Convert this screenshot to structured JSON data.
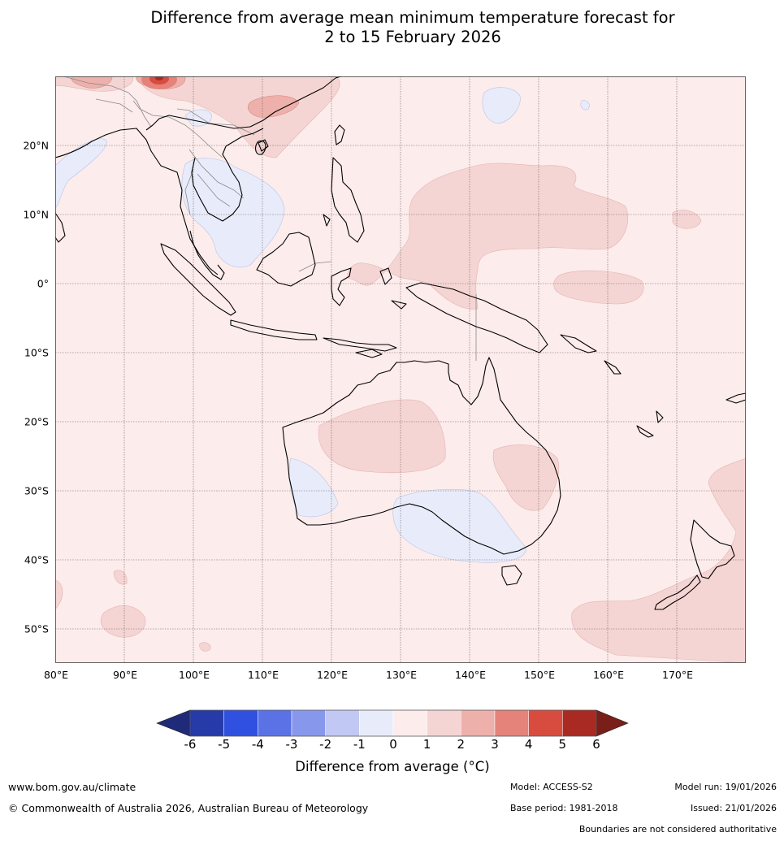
{
  "title": {
    "line1": "Difference from average mean minimum temperature forecast for",
    "line2": "2 to 15 February 2026"
  },
  "map": {
    "latitude_labels": [
      "20°N",
      "10°N",
      "0°",
      "10°S",
      "20°S",
      "30°S",
      "40°S",
      "50°S"
    ],
    "longitude_labels": [
      "80°E",
      "90°E",
      "100°E",
      "110°E",
      "120°E",
      "130°E",
      "140°E",
      "150°E",
      "160°E",
      "170°E"
    ],
    "lat_range_deg": [
      -55,
      30
    ],
    "lon_range_deg": [
      80,
      180
    ],
    "field_description_colors": {
      "background_anomaly_0_to_1": "#fceceb",
      "anomaly_1_to_2": "#f4d5d4",
      "anomaly_2_to_3": "#eeb0ab",
      "anomaly_3_to_4": "#e5827a",
      "anomaly_minus1_to_0": "#e8ecfa"
    }
  },
  "colorbar": {
    "tick_labels": [
      "-6",
      "-5",
      "-4",
      "-3",
      "-2",
      "-1",
      "0",
      "1",
      "2",
      "3",
      "4",
      "5",
      "6"
    ],
    "segment_colors": [
      "#263aa8",
      "#3050df",
      "#5a72e6",
      "#8798ec",
      "#c1c8f4",
      "#e8ecfa",
      "#fceceb",
      "#f4d5d4",
      "#eeb0ab",
      "#e5827a",
      "#d84c40",
      "#a92a22"
    ],
    "under_color": "#1f2b78",
    "over_color": "#7a1e1a",
    "title": "Difference from average (°C)"
  },
  "footer": {
    "website": "www.bom.gov.au/climate",
    "copyright": "© Commonwealth of Australia 2026, Australian Bureau of Meteorology",
    "model": "Model: ACCESS-S2",
    "base_period": "Base period: 1981-2018",
    "model_run": "Model run: 19/01/2026",
    "issued": "Issued: 21/01/2026",
    "disclaimer": "Boundaries are not considered authoritative"
  }
}
